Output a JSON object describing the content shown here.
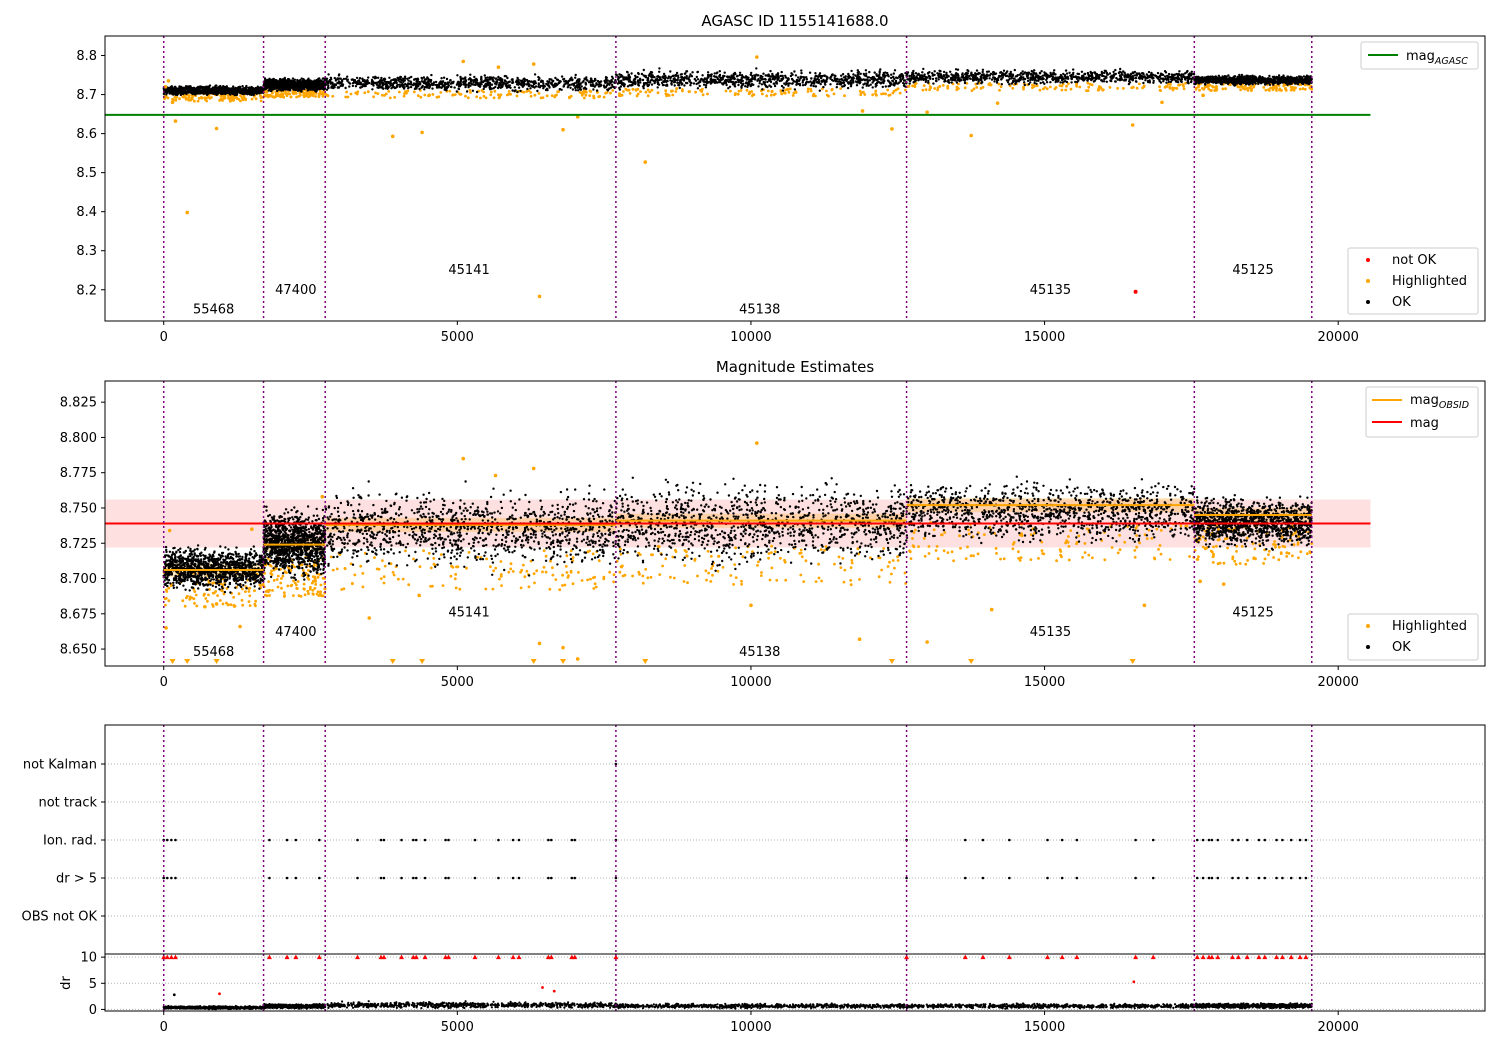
{
  "chart_data": [
    {
      "type": "scatter",
      "title": "AGASC ID 1155141688.0",
      "xlabel": "",
      "ylabel": "",
      "xlim": [
        -1000,
        22500
      ],
      "ylim": [
        8.12,
        8.85
      ],
      "xticks": [
        0,
        5000,
        10000,
        15000,
        20000
      ],
      "yticks": [
        8.2,
        8.3,
        8.4,
        8.5,
        8.6,
        8.7,
        8.8
      ],
      "grid": false,
      "legend_upper": {
        "placement": "top-right",
        "entries": [
          {
            "label": "mag",
            "sub": "AGASC",
            "color": "#008000"
          }
        ]
      },
      "legend_lower": {
        "placement": "bottom-right",
        "entries": [
          {
            "label": "not OK",
            "color": "#ff0000"
          },
          {
            "label": "Highlighted",
            "color": "#ffa500"
          },
          {
            "label": "OK",
            "color": "#000000"
          }
        ]
      },
      "mag_agasc": 8.648,
      "mag_agasc_xrange": [
        -1000,
        20550
      ],
      "ok_band": {
        "segments": [
          {
            "x": [
              0,
              1700
            ],
            "y": [
              8.695,
              8.725
            ]
          },
          {
            "x": [
              1700,
              2750
            ],
            "y": [
              8.705,
              8.745
            ]
          },
          {
            "x": [
              2750,
              7700
            ],
            "y": [
              8.703,
              8.755
            ]
          },
          {
            "x": [
              7700,
              12650
            ],
            "y": [
              8.708,
              8.768
            ]
          },
          {
            "x": [
              12650,
              17550
            ],
            "y": [
              8.722,
              8.768
            ]
          },
          {
            "x": [
              17550,
              19550
            ],
            "y": [
              8.722,
              8.752
            ]
          }
        ]
      },
      "highlighted_points": [
        {
          "x": 30,
          "y": 8.72
        },
        {
          "x": 80,
          "y": 8.735
        },
        {
          "x": 150,
          "y": 8.68
        },
        {
          "x": 200,
          "y": 8.632
        },
        {
          "x": 400,
          "y": 8.398
        },
        {
          "x": 900,
          "y": 8.613
        },
        {
          "x": 3900,
          "y": 8.593
        },
        {
          "x": 4400,
          "y": 8.603
        },
        {
          "x": 5100,
          "y": 8.785
        },
        {
          "x": 5700,
          "y": 8.77
        },
        {
          "x": 6300,
          "y": 8.778
        },
        {
          "x": 6400,
          "y": 8.183
        },
        {
          "x": 6800,
          "y": 8.61
        },
        {
          "x": 7050,
          "y": 8.643
        },
        {
          "x": 8200,
          "y": 8.527
        },
        {
          "x": 10100,
          "y": 8.796
        },
        {
          "x": 11900,
          "y": 8.658
        },
        {
          "x": 12400,
          "y": 8.612
        },
        {
          "x": 13000,
          "y": 8.655
        },
        {
          "x": 13750,
          "y": 8.595
        },
        {
          "x": 14200,
          "y": 8.678
        },
        {
          "x": 16500,
          "y": 8.622
        },
        {
          "x": 17000,
          "y": 8.68
        },
        {
          "x": 17700,
          "y": 8.698
        }
      ],
      "not_ok_points": [
        {
          "x": 16550,
          "y": 8.195
        }
      ],
      "obsid_boundaries": [
        0,
        1700,
        2750,
        7700,
        12650,
        17550,
        19550
      ],
      "obsid_labels": [
        {
          "text": "55468",
          "x": 850,
          "y": 8.15
        },
        {
          "text": "47400",
          "x": 2250,
          "y": 8.2
        },
        {
          "text": "45141",
          "x": 5200,
          "y": 8.25
        },
        {
          "text": "45138",
          "x": 10150,
          "y": 8.15
        },
        {
          "text": "45135",
          "x": 15100,
          "y": 8.2
        },
        {
          "text": "45125",
          "x": 18550,
          "y": 8.25
        }
      ]
    },
    {
      "type": "scatter",
      "title": "Magnitude Estimates",
      "xlabel": "",
      "ylabel": "",
      "xlim": [
        -1000,
        22500
      ],
      "ylim": [
        8.638,
        8.84
      ],
      "xticks": [
        0,
        5000,
        10000,
        15000,
        20000
      ],
      "yticks": [
        8.65,
        8.675,
        8.7,
        8.725,
        8.75,
        8.775,
        8.8,
        8.825
      ],
      "grid": false,
      "legend_upper": {
        "placement": "top-right",
        "entries": [
          {
            "label": "mag",
            "sub": "OBSID",
            "color": "#ffa500"
          },
          {
            "label": "mag",
            "sub": "",
            "color": "#ff0000"
          }
        ]
      },
      "legend_lower": {
        "placement": "bottom-right",
        "entries": [
          {
            "label": "Highlighted",
            "color": "#ffa500"
          },
          {
            "label": "OK",
            "color": "#000000"
          }
        ]
      },
      "mag": 8.739,
      "mag_band": [
        8.722,
        8.756
      ],
      "mag_xrange": [
        -1000,
        20550
      ],
      "mag_obsid": [
        {
          "x": [
            0,
            1700
          ],
          "value": 8.706,
          "band": [
            8.701,
            8.711
          ]
        },
        {
          "x": [
            1700,
            2750
          ],
          "value": 8.724,
          "band": [
            8.719,
            8.729
          ]
        },
        {
          "x": [
            2750,
            7700
          ],
          "value": 8.738,
          "band": [
            8.733,
            8.743
          ]
        },
        {
          "x": [
            7700,
            12650
          ],
          "value": 8.741,
          "band": [
            8.736,
            8.746
          ]
        },
        {
          "x": [
            12650,
            17550
          ],
          "value": 8.752,
          "band": [
            8.747,
            8.757
          ]
        },
        {
          "x": [
            17550,
            19550
          ],
          "value": 8.745,
          "band": [
            8.74,
            8.75
          ]
        }
      ],
      "ok_band": {
        "segments": [
          {
            "x": [
              0,
              1700
            ],
            "y": [
              8.688,
              8.726
            ]
          },
          {
            "x": [
              1700,
              2750
            ],
            "y": [
              8.695,
              8.755
            ]
          },
          {
            "x": [
              2750,
              7700
            ],
            "y": [
              8.7,
              8.77
            ]
          },
          {
            "x": [
              7700,
              12650
            ],
            "y": [
              8.703,
              8.775
            ]
          },
          {
            "x": [
              12650,
              17550
            ],
            "y": [
              8.72,
              8.775
            ]
          },
          {
            "x": [
              17550,
              19550
            ],
            "y": [
              8.718,
              8.762
            ]
          }
        ]
      },
      "highlighted_points": [
        {
          "x": 40,
          "y": 8.665
        },
        {
          "x": 100,
          "y": 8.734
        },
        {
          "x": 700,
          "y": 8.68
        },
        {
          "x": 900,
          "y": 8.682
        },
        {
          "x": 1300,
          "y": 8.666
        },
        {
          "x": 1500,
          "y": 8.735
        },
        {
          "x": 2700,
          "y": 8.758
        },
        {
          "x": 3500,
          "y": 8.672
        },
        {
          "x": 4350,
          "y": 8.688
        },
        {
          "x": 5100,
          "y": 8.785
        },
        {
          "x": 5650,
          "y": 8.773
        },
        {
          "x": 6300,
          "y": 8.778
        },
        {
          "x": 6400,
          "y": 8.654
        },
        {
          "x": 6800,
          "y": 8.651
        },
        {
          "x": 7050,
          "y": 8.643
        },
        {
          "x": 10000,
          "y": 8.681
        },
        {
          "x": 10100,
          "y": 8.796
        },
        {
          "x": 11850,
          "y": 8.657
        },
        {
          "x": 13000,
          "y": 8.655
        },
        {
          "x": 14100,
          "y": 8.678
        },
        {
          "x": 16700,
          "y": 8.681
        },
        {
          "x": 17650,
          "y": 8.698
        },
        {
          "x": 18050,
          "y": 8.696
        }
      ],
      "below_range_markers": [
        150,
        400,
        900,
        3900,
        4400,
        6300,
        6800,
        8200,
        12400,
        13750,
        16500
      ],
      "obsid_boundaries": [
        0,
        1700,
        2750,
        7700,
        12650,
        17550,
        19550
      ],
      "obsid_labels": [
        {
          "text": "55468",
          "x": 850,
          "y": 8.648
        },
        {
          "text": "47400",
          "x": 2250,
          "y": 8.662
        },
        {
          "text": "45141",
          "x": 5200,
          "y": 8.676
        },
        {
          "text": "45138",
          "x": 10150,
          "y": 8.648
        },
        {
          "text": "45135",
          "x": 15100,
          "y": 8.662
        },
        {
          "text": "45125",
          "x": 18550,
          "y": 8.676
        }
      ]
    },
    {
      "type": "scatter",
      "title": "",
      "xlabel": "",
      "ylabel": "",
      "xlim": [
        -1000,
        22500
      ],
      "categories": [
        "not Kalman",
        "not track",
        "Ion. rad.",
        "dr > 5",
        "OBS not OK"
      ],
      "grid": true,
      "flag_points_x": [
        0,
        60,
        130,
        200,
        1800,
        2100,
        2250,
        2650,
        3300,
        3700,
        3750,
        4050,
        4250,
        4300,
        4450,
        4800,
        4850,
        5300,
        5700,
        5950,
        6050,
        6550,
        6600,
        6950,
        7000,
        7700,
        12650,
        13650,
        13950,
        14400,
        15050,
        15300,
        15550,
        16550,
        16850,
        17600,
        17700,
        17800,
        17850,
        17950,
        18200,
        18300,
        18450,
        18650,
        18750,
        18950,
        19050,
        19200,
        19350,
        19450
      ],
      "flag_rows": [
        "Ion. rad.",
        "dr > 5"
      ],
      "not_kalman_x": [
        7700
      ],
      "obsid_boundaries": [
        0,
        1700,
        2750,
        7700,
        12650,
        17550,
        19550
      ]
    },
    {
      "type": "scatter",
      "title": "",
      "xlabel": "",
      "ylabel": "dr",
      "xlim": [
        -1000,
        22500
      ],
      "ylim": [
        -0.3,
        10.6
      ],
      "yticks": [
        0,
        5,
        10
      ],
      "grid": true,
      "ok_band": {
        "segments": [
          {
            "x": [
              0,
              1700
            ],
            "y": [
              0,
              0.7
            ]
          },
          {
            "x": [
              1700,
              2750
            ],
            "y": [
              0.1,
              1.1
            ]
          },
          {
            "x": [
              2750,
              7700
            ],
            "y": [
              0.1,
              1.6
            ]
          },
          {
            "x": [
              7700,
              12650
            ],
            "y": [
              0.1,
              1.2
            ]
          },
          {
            "x": [
              12650,
              17550
            ],
            "y": [
              0.1,
              1.2
            ]
          },
          {
            "x": [
              17550,
              19550
            ],
            "y": [
              0.1,
              1.3
            ]
          }
        ]
      },
      "isolated_points": [
        {
          "x": 180,
          "y": 2.8,
          "color": "#000000"
        },
        {
          "x": 950,
          "y": 3.0,
          "color": "#ff0000"
        },
        {
          "x": 6450,
          "y": 4.2,
          "color": "#ff0000"
        },
        {
          "x": 6650,
          "y": 3.5,
          "color": "#ff0000"
        },
        {
          "x": 16520,
          "y": 5.3,
          "color": "#ff0000"
        }
      ],
      "clipped_value": 10,
      "obsid_boundaries": [
        0,
        1700,
        2750,
        7700,
        12650,
        17550,
        19550
      ]
    }
  ]
}
